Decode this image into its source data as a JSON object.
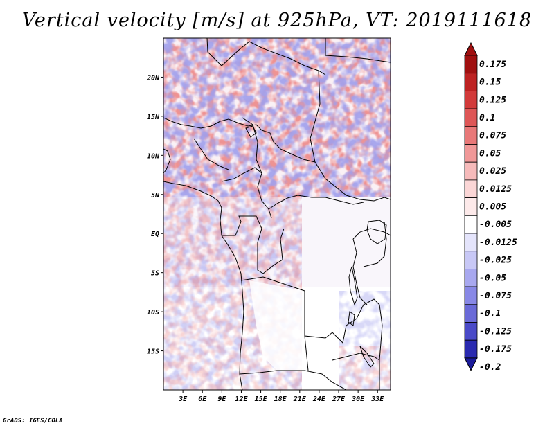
{
  "title": "Vertical velocity [m/s] at 925hPa, VT: 2019111618",
  "credit": "GrADS: IGES/COLA",
  "map": {
    "lon_range": [
      0,
      35
    ],
    "lat_range": [
      -20,
      25
    ],
    "lat_ticks": [
      {
        "value": 20,
        "label": "20N"
      },
      {
        "value": 15,
        "label": "15N"
      },
      {
        "value": 10,
        "label": "10N"
      },
      {
        "value": 5,
        "label": "5N"
      },
      {
        "value": 0,
        "label": "EQ"
      },
      {
        "value": -5,
        "label": "5S"
      },
      {
        "value": -10,
        "label": "10S"
      },
      {
        "value": -15,
        "label": "15S"
      }
    ],
    "lon_ticks": [
      {
        "value": 3,
        "label": "3E"
      },
      {
        "value": 6,
        "label": "6E"
      },
      {
        "value": 9,
        "label": "9E"
      },
      {
        "value": 12,
        "label": "12E"
      },
      {
        "value": 15,
        "label": "15E"
      },
      {
        "value": 18,
        "label": "18E"
      },
      {
        "value": 21,
        "label": "21E"
      },
      {
        "value": 24,
        "label": "24E"
      },
      {
        "value": 27,
        "label": "27E"
      },
      {
        "value": 30,
        "label": "30E"
      },
      {
        "value": 33,
        "label": "33E"
      }
    ]
  },
  "colorbar": {
    "levels": [
      {
        "label": "0.175",
        "color": "#a01010"
      },
      {
        "label": "0.15",
        "color": "#bd2222"
      },
      {
        "label": "0.125",
        "color": "#d23a3a"
      },
      {
        "label": "0.1",
        "color": "#de5656"
      },
      {
        "label": "0.075",
        "color": "#e87878"
      },
      {
        "label": "0.05",
        "color": "#f09898"
      },
      {
        "label": "0.025",
        "color": "#f6baba"
      },
      {
        "label": "0.0125",
        "color": "#fbd6d6"
      },
      {
        "label": "0.005",
        "color": "#fdeaea"
      },
      {
        "label": "-0.005",
        "color": "#ffffff"
      },
      {
        "label": "-0.0125",
        "color": "#e4e4fb"
      },
      {
        "label": "-0.025",
        "color": "#c8c8f6"
      },
      {
        "label": "-0.05",
        "color": "#a8a8ef"
      },
      {
        "label": "-0.075",
        "color": "#8888e6"
      },
      {
        "label": "-0.1",
        "color": "#6a6ad8"
      },
      {
        "label": "-0.125",
        "color": "#4a4ac8"
      },
      {
        "label": "-0.175",
        "color": "#2a2ab0"
      },
      {
        "label": "-0.2",
        "color": "#1a1a9a"
      }
    ],
    "top_color": "#a01010",
    "bottom_color": "#1a1a9a"
  }
}
